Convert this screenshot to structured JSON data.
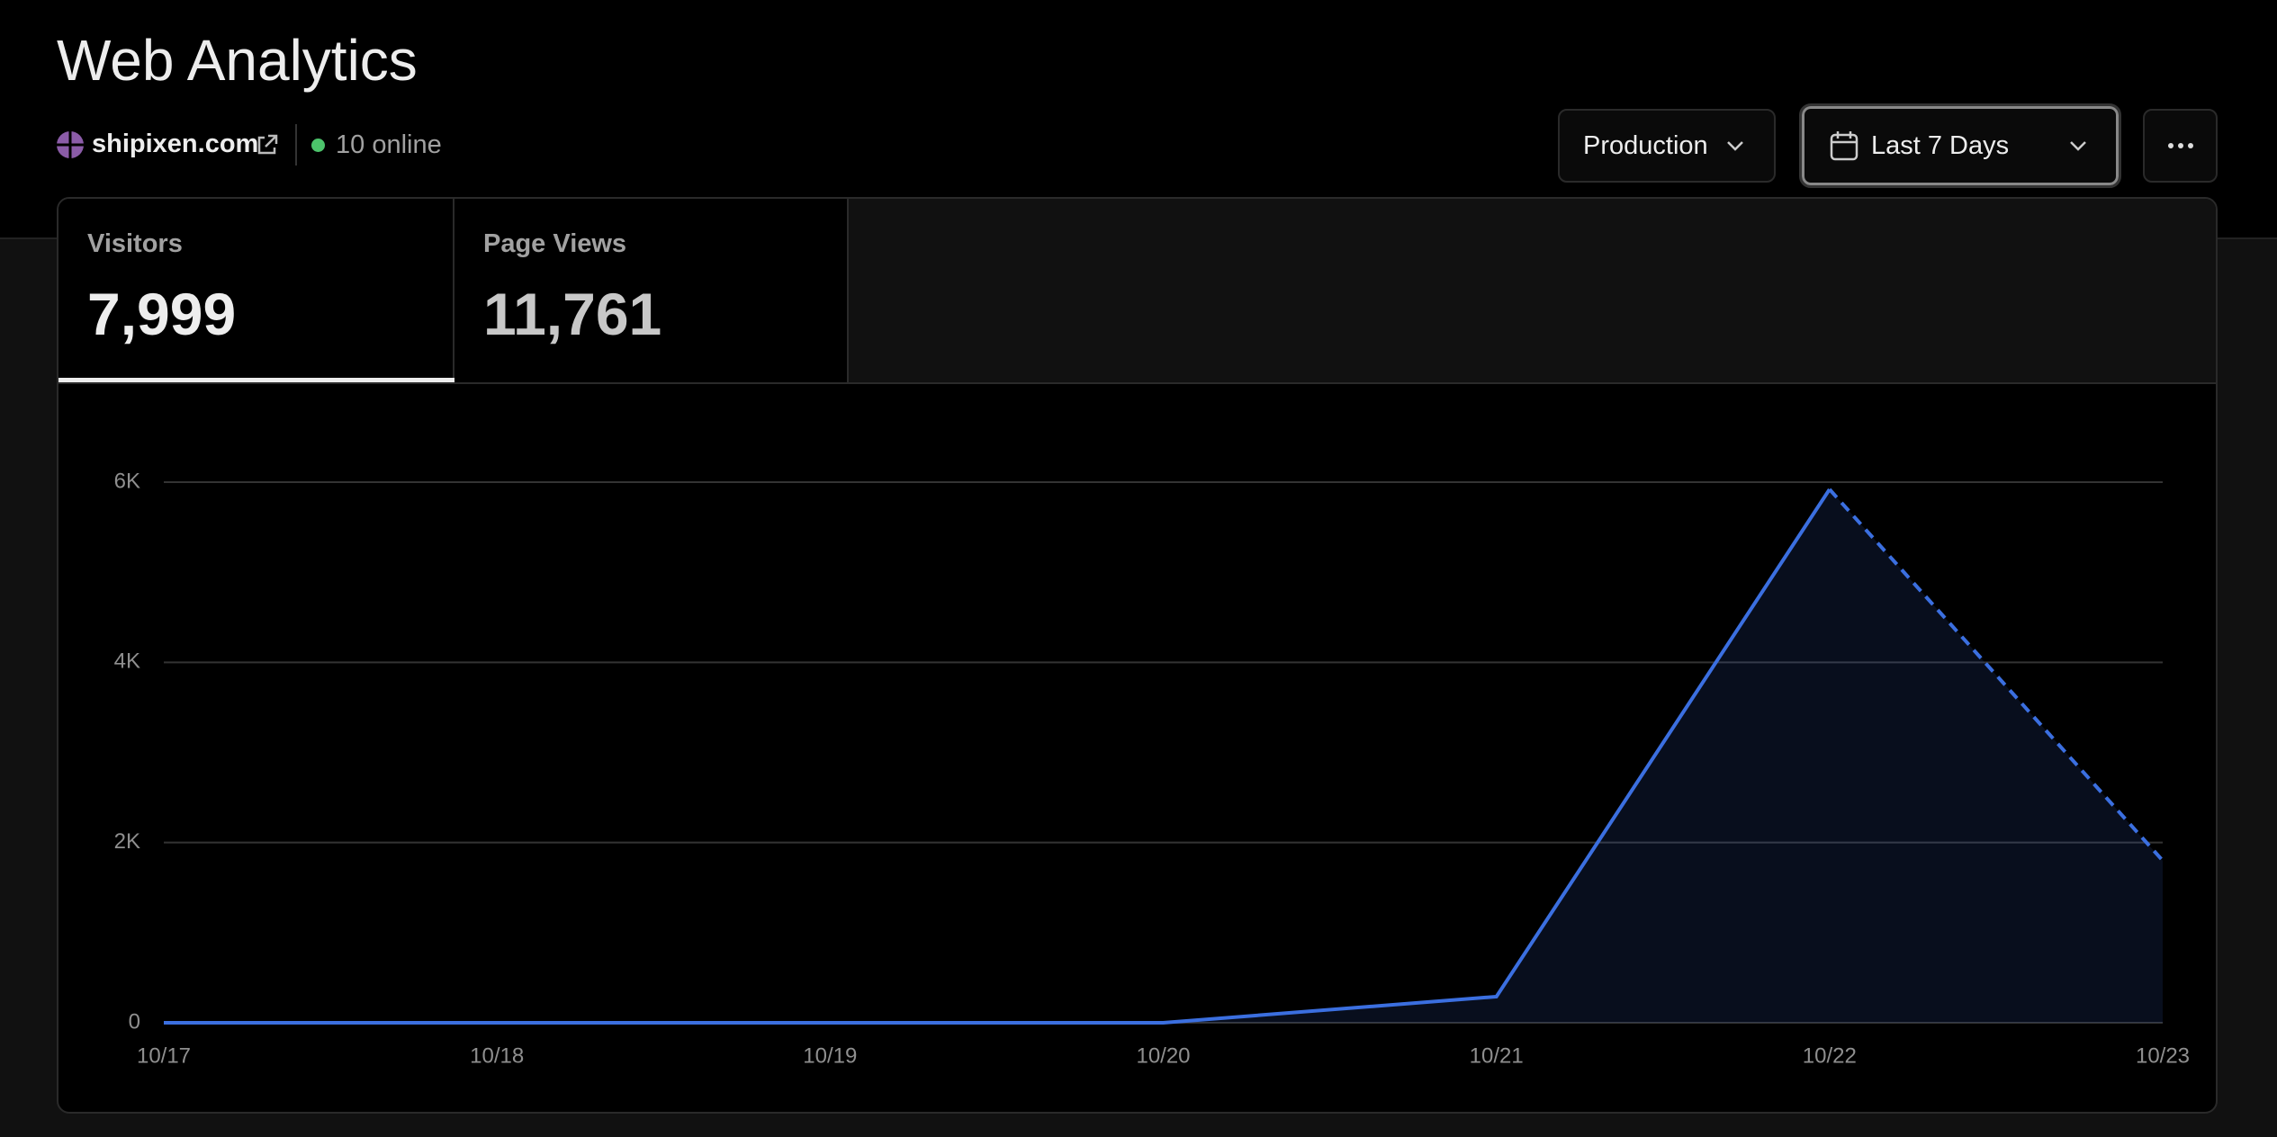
{
  "header": {
    "title": "Web Analytics",
    "site": "shipixen.com",
    "online": "10 online"
  },
  "controls": {
    "environment": "Production",
    "range": "Last 7 Days"
  },
  "tabs": [
    {
      "label": "Visitors",
      "value": "7,999"
    },
    {
      "label": "Page Views",
      "value": "11,761"
    }
  ],
  "chart_data": {
    "type": "line",
    "categories": [
      "10/17",
      "10/18",
      "10/19",
      "10/20",
      "10/21",
      "10/22",
      "10/23"
    ],
    "series": [
      {
        "name": "Visitors",
        "color": "#3b6fe0",
        "values": [
          0,
          0,
          0,
          0,
          290,
          5920,
          1800
        ]
      }
    ],
    "ylim": [
      0,
      6000
    ],
    "yticks": [
      0,
      {
        "value": 2000,
        "label": "2K"
      },
      {
        "value": 4000,
        "label": "4K"
      },
      {
        "value": 6000,
        "label": "6K"
      }
    ],
    "grid": true
  }
}
